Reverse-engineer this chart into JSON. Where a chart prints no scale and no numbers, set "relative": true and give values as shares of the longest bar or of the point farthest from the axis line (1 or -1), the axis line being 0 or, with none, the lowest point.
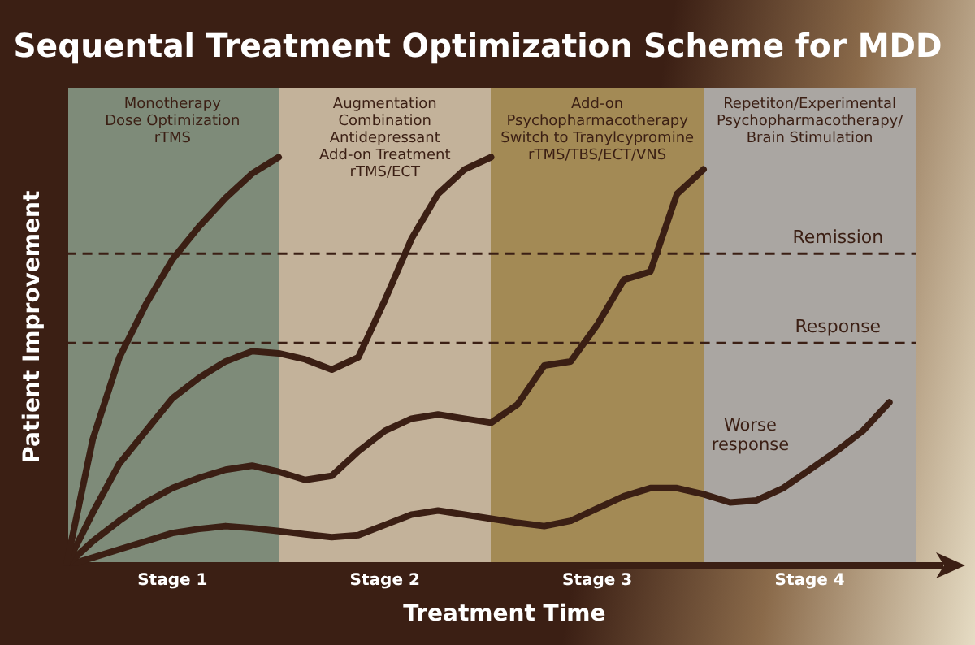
{
  "chart_data": {
    "type": "line",
    "title": "Sequental Treatment Optimization Scheme for MDD",
    "xlabel": "Treatment Time",
    "ylabel": "Patient Improvement",
    "relative": true,
    "categories": [
      null,
      null,
      null,
      null,
      "Stage 1",
      null,
      null,
      null,
      null,
      null,
      null,
      null,
      "Stage 2",
      null,
      null,
      null,
      null,
      null,
      null,
      null,
      "Stage 3",
      null,
      null,
      null,
      null,
      null,
      null,
      null,
      "Stage 4",
      null,
      null,
      null,
      null,
      null
    ],
    "series": [
      {
        "color": "#3b1f14",
        "values": [
          0,
          0.31,
          0.51,
          0.64,
          0.75,
          0.83,
          0.9,
          0.96,
          1,
          null,
          null,
          null,
          null,
          null,
          null,
          null,
          null,
          null,
          null,
          null,
          null,
          null,
          null,
          null,
          null,
          null,
          null,
          null,
          null,
          null,
          null,
          null,
          null,
          null
        ]
      },
      {
        "color": "#3b1f14",
        "values": [
          0,
          0.13,
          0.25,
          0.33,
          0.41,
          0.46,
          0.5,
          0.525,
          0.52,
          0.505,
          0.48,
          0.51,
          0.65,
          0.8,
          0.91,
          0.97,
          1,
          null,
          null,
          null,
          null,
          null,
          null,
          null,
          null,
          null,
          null,
          null,
          null,
          null,
          null,
          null,
          null,
          null
        ]
      },
      {
        "color": "#3b1f14",
        "values": [
          0,
          0.06,
          0.11,
          0.155,
          0.19,
          0.215,
          0.235,
          0.245,
          0.23,
          0.21,
          0.22,
          0.28,
          0.33,
          0.36,
          0.37,
          0.36,
          0.35,
          0.395,
          0.49,
          0.5,
          0.59,
          0.7,
          0.72,
          0.91,
          0.97,
          null,
          null,
          null,
          null,
          null,
          null,
          null,
          null,
          null
        ]
      },
      {
        "color": "#3b1f14",
        "values": [
          0,
          0.02,
          0.04,
          0.06,
          0.08,
          0.09,
          0.097,
          0.092,
          0.085,
          0.077,
          0.07,
          0.075,
          0.1,
          0.125,
          0.135,
          0.125,
          0.115,
          0.105,
          0.097,
          0.11,
          0.14,
          0.17,
          0.19,
          0.19,
          0.175,
          0.155,
          0.16,
          0.19,
          0.235,
          0.28,
          0.33,
          0.4,
          null,
          null
        ]
      }
    ],
    "ref_lines": [
      {
        "axis": "y",
        "value": 0.764,
        "label": "Remission",
        "color": "#3b1f14",
        "line_style": "dashed"
      },
      {
        "axis": "y",
        "value": 0.545,
        "label": "Response",
        "color": "#3b1f14",
        "line_style": "dashed"
      }
    ],
    "annotations": [
      "Monotherapy\nDose Optimization\nrTMS",
      "Augmentation\nCombination\nAntidepressant\nAdd-on Treatment\nrTMS/ECT",
      "Add-on\nPsychopharmacotherapy\nSwitch to Tranylcypromine\nrTMS/TBS/ECT/VNS",
      "Repetiton/Experimental\nPsychopharmacotherapy/\nBrain Stimulation",
      "Worse\nresponse"
    ],
    "grid": false,
    "legend": false,
    "marker": "none",
    "line_style": "solid"
  }
}
